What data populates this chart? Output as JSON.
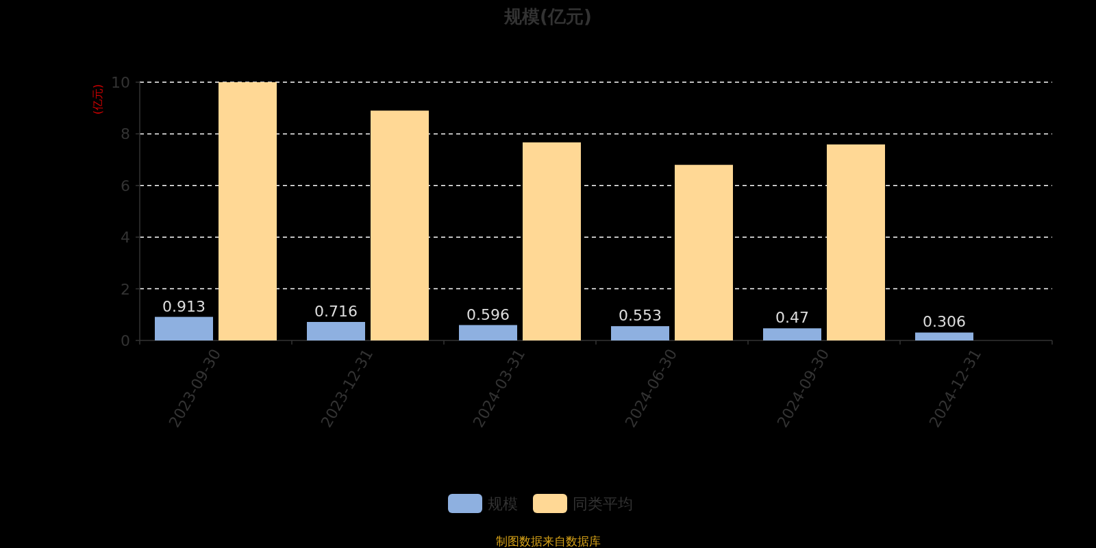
{
  "chart_data": {
    "type": "bar",
    "title": "规模(亿元)",
    "ylabel": "(亿元)",
    "categories": [
      "2023-09-30",
      "2023-12-31",
      "2024-03-31",
      "2024-06-30",
      "2024-09-30",
      "2024-12-31"
    ],
    "series": [
      {
        "name": "规模",
        "color": "#8eb0e0",
        "values": [
          0.913,
          0.716,
          0.596,
          0.553,
          0.47,
          0.306
        ],
        "value_labels": [
          "0.913",
          "0.716",
          "0.596",
          "0.553",
          "0.47",
          "0.306"
        ]
      },
      {
        "name": "同类平均",
        "color": "#ffd895",
        "values": [
          10.0,
          8.9,
          7.67,
          6.8,
          7.59,
          null
        ]
      }
    ],
    "ylim": [
      0,
      10
    ],
    "yticks": [
      0,
      2,
      4,
      6,
      8,
      10
    ],
    "grid": "y",
    "legend": "bottom",
    "annotations": [
      "制图数据来自数据库"
    ]
  }
}
